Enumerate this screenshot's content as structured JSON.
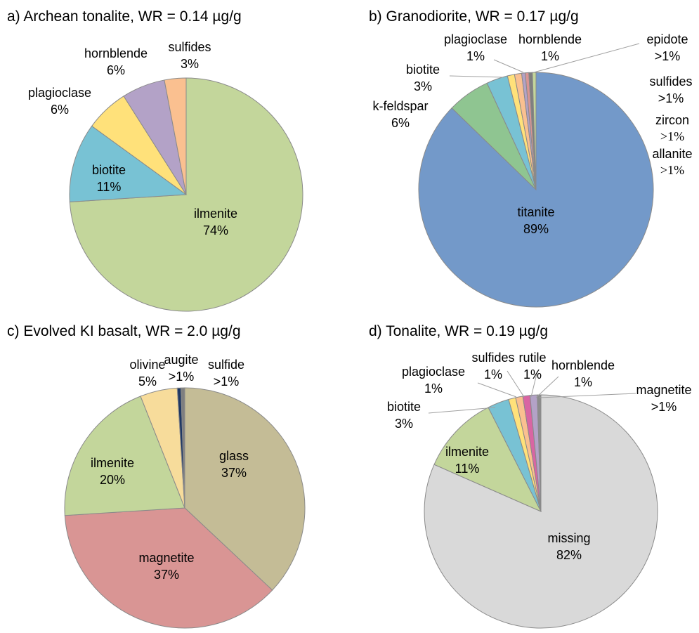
{
  "chart_data": [
    {
      "type": "pie",
      "title": "a) Archean tonalite, WR = 0.14 µg/g",
      "categories": [
        "ilmenite",
        "biotite",
        "plagioclase",
        "hornblende",
        "sulfides"
      ],
      "values": [
        74,
        11,
        6,
        6,
        3
      ],
      "value_labels": [
        "74%",
        "11%",
        "6%",
        "6%",
        "3%"
      ],
      "colors": [
        "#c3d69b",
        "#78c2d4",
        "#ffe17a",
        "#b3a2c7",
        "#fac090"
      ]
    },
    {
      "type": "pie",
      "title": "b) Granodiorite, WR = 0.17 µg/g",
      "categories": [
        "titanite",
        "k-feldspar",
        "biotite",
        "plagioclase",
        "hornblende",
        "epidote",
        "sulfides",
        "zircon",
        "allanite"
      ],
      "values": [
        89,
        6,
        3,
        1,
        1,
        0.5,
        0.5,
        0.5,
        0.5
      ],
      "value_labels": [
        "89%",
        "6%",
        "3%",
        "1%",
        "1%",
        ">1%",
        ">1%",
        ">1%",
        ">1%"
      ],
      "colors": [
        "#7399c9",
        "#8fc591",
        "#78c2d4",
        "#ffe17a",
        "#fac090",
        "#b3a2c7",
        "#d99594",
        "#7f7f7f",
        "#c3d69b"
      ]
    },
    {
      "type": "pie",
      "title": "c) Evolved KI basalt, WR = 2.0 µg/g",
      "categories": [
        "glass",
        "magnetite",
        "ilmenite",
        "olivine",
        "augite",
        "sulfide"
      ],
      "values": [
        37,
        37,
        20,
        5,
        0.5,
        0.5
      ],
      "value_labels": [
        "37%",
        "37%",
        "20%",
        "5%",
        ">1%",
        ">1%"
      ],
      "colors": [
        "#c4bc96",
        "#d99594",
        "#c3d69b",
        "#f7dc9b",
        "#1f3864",
        "#7f7f7f"
      ]
    },
    {
      "type": "pie",
      "title": "d) Tonalite, WR = 0.19 µg/g",
      "categories": [
        "missing",
        "ilmenite",
        "biotite",
        "plagioclase",
        "sulfides",
        "rutile",
        "hornblende",
        "magnetite"
      ],
      "values": [
        82,
        11,
        3,
        1,
        1,
        1,
        1,
        0.5
      ],
      "value_labels": [
        "82%",
        "11%",
        "3%",
        "1%",
        "1%",
        "1%",
        "1%",
        ">1%"
      ],
      "colors": [
        "#d9d9d9",
        "#c3d69b",
        "#78c2d4",
        "#ffe17a",
        "#fac090",
        "#d965a3",
        "#b3a2c7",
        "#8c8c8c"
      ]
    }
  ]
}
